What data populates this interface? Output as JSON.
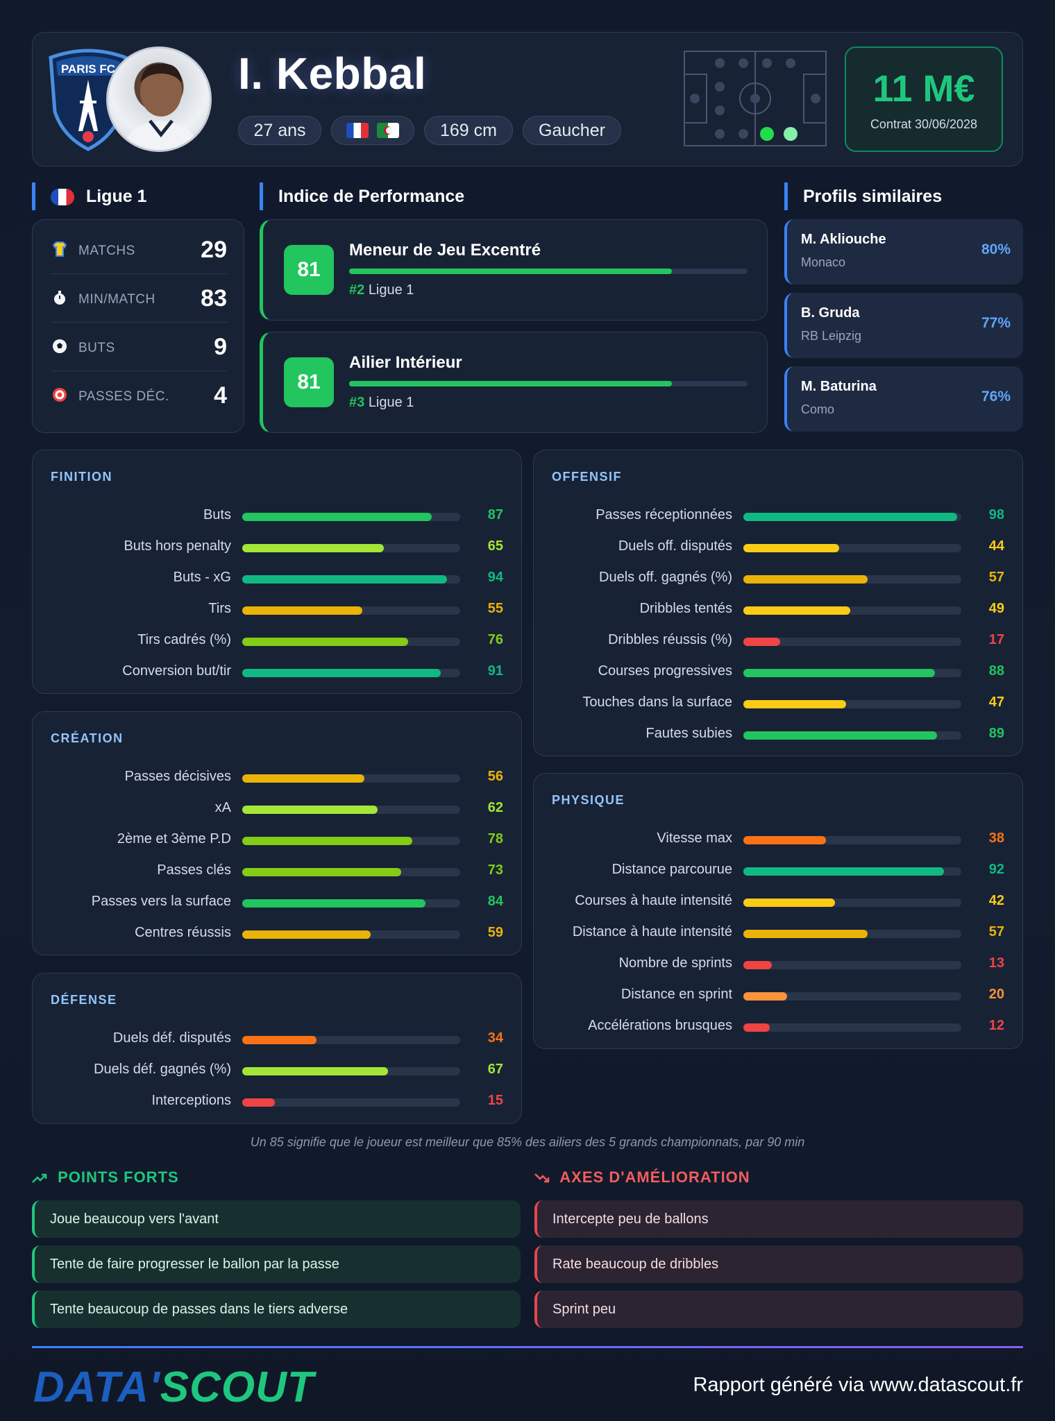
{
  "header": {
    "club_crest_text": "PARIS FC",
    "name": "I. Kebbal",
    "age": "27 ans",
    "height": "169 cm",
    "foot": "Gaucher",
    "market_value": "11 M€",
    "contract": "Contrat 30/06/2028"
  },
  "league": {
    "title": "Ligue 1",
    "stats": [
      {
        "icon": "shirt-icon",
        "label": "MATCHS",
        "value": "29"
      },
      {
        "icon": "stopwatch-icon",
        "label": "MIN/MATCH",
        "value": "83"
      },
      {
        "icon": "ball-icon",
        "label": "BUTS",
        "value": "9"
      },
      {
        "icon": "target-icon",
        "label": "PASSES DÉC.",
        "value": "4"
      }
    ]
  },
  "performance": {
    "title": "Indice de Performance",
    "roles": [
      {
        "score": "81",
        "name": "Meneur de Jeu Excentré",
        "rank": "#2",
        "league": "Ligue 1",
        "level": 81
      },
      {
        "score": "81",
        "name": "Ailier Intérieur",
        "rank": "#3",
        "league": "Ligue 1",
        "level": 81
      }
    ]
  },
  "similar": {
    "title": "Profils similaires",
    "players": [
      {
        "name": "M. Akliouche",
        "club": "Monaco",
        "pct": "80%"
      },
      {
        "name": "B. Gruda",
        "club": "RB Leipzig",
        "pct": "77%"
      },
      {
        "name": "M. Baturina",
        "club": "Como",
        "pct": "76%"
      }
    ]
  },
  "groups": {
    "finition": {
      "title": "FINITION",
      "metrics": [
        {
          "label": "Buts",
          "value": 87,
          "color": "#22c55e"
        },
        {
          "label": "Buts hors penalty",
          "value": 65,
          "color": "#a3e635"
        },
        {
          "label": "Buts - xG",
          "value": 94,
          "color": "#10b981"
        },
        {
          "label": "Tirs",
          "value": 55,
          "color": "#eab308"
        },
        {
          "label": "Tirs cadrés (%)",
          "value": 76,
          "color": "#84cc16"
        },
        {
          "label": "Conversion but/tir",
          "value": 91,
          "color": "#10b981"
        }
      ]
    },
    "creation": {
      "title": "CRÉATION",
      "metrics": [
        {
          "label": "Passes décisives",
          "value": 56,
          "color": "#eab308"
        },
        {
          "label": "xA",
          "value": 62,
          "color": "#a3e635"
        },
        {
          "label": "2ème et 3ème P.D",
          "value": 78,
          "color": "#84cc16"
        },
        {
          "label": "Passes clés",
          "value": 73,
          "color": "#84cc16"
        },
        {
          "label": "Passes vers la surface",
          "value": 84,
          "color": "#22c55e"
        },
        {
          "label": "Centres réussis",
          "value": 59,
          "color": "#eab308"
        }
      ]
    },
    "defense": {
      "title": "DÉFENSE",
      "metrics": [
        {
          "label": "Duels déf. disputés",
          "value": 34,
          "color": "#f97316"
        },
        {
          "label": "Duels déf. gagnés (%)",
          "value": 67,
          "color": "#a3e635"
        },
        {
          "label": "Interceptions",
          "value": 15,
          "color": "#ef4444"
        }
      ]
    },
    "offensif": {
      "title": "OFFENSIF",
      "metrics": [
        {
          "label": "Passes réceptionnées",
          "value": 98,
          "color": "#10b981"
        },
        {
          "label": "Duels off. disputés",
          "value": 44,
          "color": "#facc15"
        },
        {
          "label": "Duels off. gagnés (%)",
          "value": 57,
          "color": "#eab308"
        },
        {
          "label": "Dribbles tentés",
          "value": 49,
          "color": "#facc15"
        },
        {
          "label": "Dribbles réussis (%)",
          "value": 17,
          "color": "#ef4444"
        },
        {
          "label": "Courses progressives",
          "value": 88,
          "color": "#22c55e"
        },
        {
          "label": "Touches dans la surface",
          "value": 47,
          "color": "#facc15"
        },
        {
          "label": "Fautes subies",
          "value": 89,
          "color": "#22c55e"
        }
      ]
    },
    "physique": {
      "title": "PHYSIQUE",
      "metrics": [
        {
          "label": "Vitesse max",
          "value": 38,
          "color": "#f97316"
        },
        {
          "label": "Distance parcourue",
          "value": 92,
          "color": "#10b981"
        },
        {
          "label": "Courses à haute intensité",
          "value": 42,
          "color": "#facc15"
        },
        {
          "label": "Distance à haute intensité",
          "value": 57,
          "color": "#eab308"
        },
        {
          "label": "Nombre de sprints",
          "value": 13,
          "color": "#ef4444"
        },
        {
          "label": "Distance en sprint",
          "value": 20,
          "color": "#fb923c"
        },
        {
          "label": "Accélérations brusques",
          "value": 12,
          "color": "#ef4444"
        }
      ]
    }
  },
  "footnote": "Un 85 signifie que le joueur est meilleur que 85% des ailiers des 5 grands championnats, par 90 min",
  "strengths": {
    "title": "POINTS FORTS",
    "items": [
      "Joue beaucoup vers l'avant",
      "Tente de faire progresser le ballon par la passe",
      "Tente beaucoup de passes dans le tiers adverse"
    ]
  },
  "weaknesses": {
    "title": "AXES D'AMÉLIORATION",
    "items": [
      "Intercepte peu de ballons",
      "Rate beaucoup de dribbles",
      "Sprint peu"
    ]
  },
  "footer": {
    "logo_left": "DATA'",
    "logo_right": "SCOUT",
    "text": "Rapport généré via www.datascout.fr"
  }
}
